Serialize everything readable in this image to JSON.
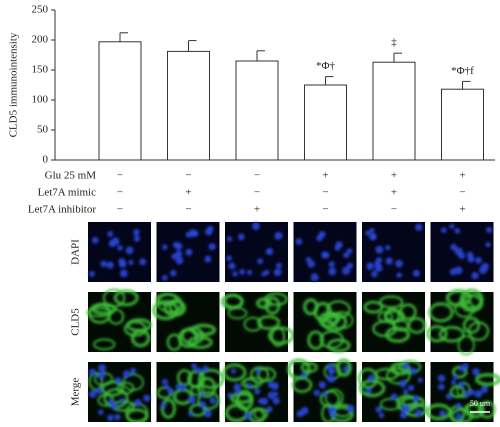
{
  "chart_data": {
    "type": "bar",
    "y_label": "CLD5 immunointensity",
    "categories": [
      null,
      null,
      null,
      null,
      null,
      null
    ],
    "values": [
      197,
      181,
      165,
      125,
      163,
      118
    ],
    "errors": [
      15,
      18,
      17,
      14,
      15,
      13
    ],
    "annotations": [
      null,
      null,
      null,
      "*Φ†",
      "‡",
      "*Φ†f"
    ],
    "color": "#ffffff",
    "ylim": [
      0,
      250
    ],
    "yticks": [
      0,
      50,
      100,
      150,
      200,
      250
    ],
    "treatments": [
      {
        "name": "Glu 25 mM",
        "signs": [
          "−",
          "−",
          "−",
          "+",
          "+",
          "+"
        ]
      },
      {
        "name": "Let7A mimic",
        "signs": [
          "−",
          "+",
          "−",
          "−",
          "+",
          "−"
        ]
      },
      {
        "name": "Let7A inhibitor",
        "signs": [
          "−",
          "−",
          "+",
          "−",
          "−",
          "+"
        ]
      }
    ]
  },
  "micrographs": {
    "rows": [
      "DAPI",
      "CLD5",
      "Merge"
    ],
    "scale_bar": "50 um"
  }
}
